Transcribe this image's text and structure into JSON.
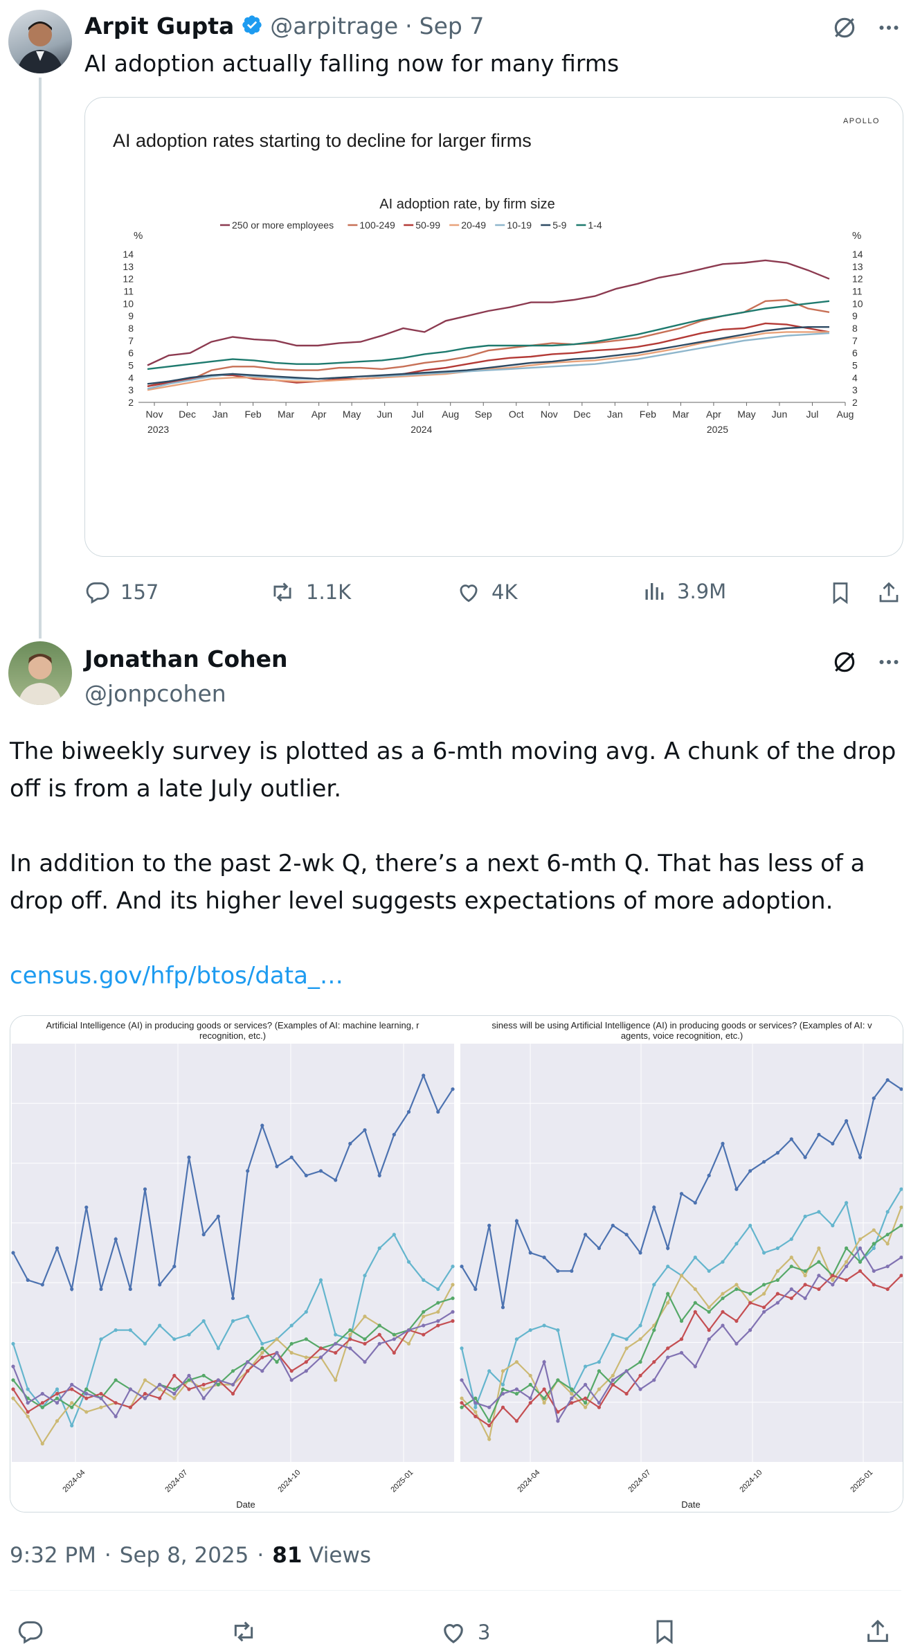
{
  "tweet1": {
    "name": "Arpit Gupta",
    "handle": "@arpitrage",
    "separator": "·",
    "date": "Sep 7",
    "text": "AI adoption actually falling now for many firms",
    "replies": "157",
    "retweets": "1.1K",
    "likes": "4K",
    "views": "3.9M"
  },
  "chart1": {
    "brand": "APOLLO",
    "headline": "AI adoption rates starting to decline for larger firms",
    "subtitle": "AI adoption rate, by firm size",
    "unit": "%",
    "legend": [
      "250 or more employees",
      "100-249",
      "50-99",
      "20-49",
      "10-19",
      "5-9",
      "1-4"
    ]
  },
  "chart_data": [
    {
      "type": "line",
      "title": "AI adoption rates starting to decline for larger firms",
      "subtitle": "AI adoption rate, by firm size",
      "ylabel": "%",
      "ylim": [
        2,
        14
      ],
      "yticks": [
        2,
        3,
        4,
        5,
        6,
        7,
        8,
        9,
        10,
        11,
        12,
        13,
        14
      ],
      "x_labels": [
        "Nov",
        "Dec",
        "Jan",
        "Feb",
        "Mar",
        "Apr",
        "May",
        "Jun",
        "Jul",
        "Aug",
        "Sep",
        "Oct",
        "Nov",
        "Dec",
        "Jan",
        "Feb",
        "Mar",
        "Apr",
        "May",
        "Jun",
        "Jul",
        "Aug"
      ],
      "year_labels": [
        "2023",
        "2024",
        "2025"
      ],
      "grid": false,
      "legend_position": "top",
      "colors": [
        "#8c3a50",
        "#c77056",
        "#b33a36",
        "#e8a27a",
        "#8eb6cc",
        "#2d4a63",
        "#1e7a6e"
      ],
      "series": [
        {
          "name": "250 or more employees",
          "values": [
            5.0,
            5.8,
            6.0,
            6.9,
            7.3,
            7.1,
            7.0,
            6.6,
            6.6,
            6.8,
            6.9,
            7.4,
            8.0,
            7.7,
            8.6,
            9.0,
            9.4,
            9.7,
            10.1,
            10.1,
            10.3,
            10.6,
            11.2,
            11.6,
            12.1,
            12.4,
            12.8,
            13.2,
            13.3,
            13.5,
            13.3,
            12.7,
            12.0
          ]
        },
        {
          "name": "100-249",
          "values": [
            3.3,
            3.7,
            3.8,
            4.6,
            4.9,
            4.9,
            4.7,
            4.6,
            4.6,
            4.8,
            4.8,
            4.7,
            4.9,
            5.2,
            5.4,
            5.7,
            6.2,
            6.4,
            6.6,
            6.8,
            6.7,
            6.8,
            7.0,
            7.2,
            7.6,
            8.0,
            8.6,
            9.0,
            9.3,
            10.2,
            10.3,
            9.6,
            9.3
          ]
        },
        {
          "name": "50-99",
          "values": [
            3.3,
            3.6,
            3.9,
            4.2,
            4.2,
            3.9,
            3.8,
            3.6,
            3.7,
            3.9,
            3.9,
            4.0,
            4.3,
            4.6,
            4.8,
            5.1,
            5.4,
            5.6,
            5.7,
            5.9,
            6.0,
            6.2,
            6.3,
            6.5,
            6.8,
            7.2,
            7.6,
            7.9,
            8.0,
            8.4,
            8.3,
            8.0,
            7.7
          ]
        },
        {
          "name": "20-49",
          "values": [
            3.0,
            3.3,
            3.6,
            3.9,
            4.0,
            4.0,
            3.8,
            3.7,
            3.7,
            3.8,
            3.9,
            4.0,
            4.1,
            4.2,
            4.3,
            4.5,
            4.7,
            4.8,
            5.0,
            5.2,
            5.3,
            5.4,
            5.6,
            5.8,
            6.1,
            6.4,
            6.8,
            7.1,
            7.3,
            7.6,
            7.7,
            7.7,
            7.7
          ]
        },
        {
          "name": "10-19",
          "values": [
            3.1,
            3.5,
            3.8,
            4.1,
            4.3,
            4.1,
            4.0,
            3.9,
            3.9,
            4.0,
            4.1,
            4.1,
            4.2,
            4.3,
            4.4,
            4.5,
            4.6,
            4.7,
            4.8,
            4.9,
            5.0,
            5.1,
            5.3,
            5.5,
            5.8,
            6.1,
            6.4,
            6.7,
            7.0,
            7.2,
            7.4,
            7.5,
            7.6
          ]
        },
        {
          "name": "5-9",
          "values": [
            3.5,
            3.7,
            4.0,
            4.2,
            4.3,
            4.2,
            4.1,
            4.0,
            3.9,
            4.0,
            4.1,
            4.2,
            4.3,
            4.4,
            4.5,
            4.6,
            4.8,
            5.0,
            5.2,
            5.3,
            5.5,
            5.6,
            5.8,
            6.0,
            6.3,
            6.6,
            6.9,
            7.2,
            7.5,
            7.8,
            8.0,
            8.1,
            8.1
          ]
        },
        {
          "name": "1-4",
          "values": [
            4.7,
            4.9,
            5.1,
            5.3,
            5.5,
            5.4,
            5.2,
            5.1,
            5.1,
            5.2,
            5.3,
            5.4,
            5.6,
            5.9,
            6.1,
            6.4,
            6.6,
            6.6,
            6.6,
            6.6,
            6.7,
            6.9,
            7.2,
            7.5,
            7.9,
            8.3,
            8.7,
            9.0,
            9.3,
            9.6,
            9.8,
            10.0,
            10.2
          ]
        }
      ]
    },
    {
      "type": "line",
      "title": "Artificial Intelligence (AI) in producing goods or services? (Examples of AI: machine learning, r... recognition, etc.)",
      "xlabel": "Date",
      "x_ticks": [
        "2024-04",
        "2024-07",
        "2024-10",
        "2025-01"
      ],
      "grid": true,
      "legend_position": "none",
      "colors": [
        "#4c72b0",
        "#64b5cd",
        "#ccb974",
        "#55a868",
        "#c44e52",
        "#8172b2"
      ],
      "series": [
        {
          "values": [
            5.2,
            4.6,
            4.5,
            5.3,
            4.4,
            6.2,
            4.4,
            5.5,
            4.4,
            6.6,
            4.5,
            4.9,
            7.3,
            5.6,
            6.0,
            4.2,
            7.0,
            8.0,
            7.1,
            7.3,
            6.9,
            7.0,
            6.8,
            7.6,
            7.9,
            6.9,
            7.8,
            8.3,
            9.1,
            8.3,
            8.8
          ]
        },
        {
          "values": [
            3.2,
            2.2,
            1.8,
            2.2,
            1.4,
            2.2,
            3.3,
            3.5,
            3.5,
            3.2,
            3.6,
            3.3,
            3.4,
            3.7,
            3.1,
            3.7,
            3.8,
            3.2,
            3.3,
            3.6,
            3.9,
            4.6,
            3.4,
            3.3,
            4.7,
            5.3,
            5.6,
            5.0,
            4.6,
            4.4,
            4.9
          ]
        },
        {
          "values": [
            2.0,
            1.6,
            1.0,
            1.5,
            1.9,
            1.7,
            1.8,
            1.9,
            1.8,
            2.4,
            2.2,
            2.0,
            2.4,
            2.2,
            2.3,
            2.3,
            2.6,
            3.0,
            3.3,
            3.0,
            2.9,
            2.9,
            2.4,
            3.4,
            3.8,
            3.6,
            3.4,
            3.2,
            3.8,
            3.9,
            4.5
          ]
        },
        {
          "values": [
            2.4,
            2.0,
            1.8,
            2.0,
            1.8,
            2.2,
            2.0,
            2.4,
            2.2,
            2.0,
            2.3,
            2.2,
            2.4,
            2.5,
            2.3,
            2.6,
            2.8,
            3.1,
            2.8,
            3.2,
            3.3,
            3.1,
            3.2,
            3.5,
            3.3,
            3.6,
            3.4,
            3.5,
            3.9,
            4.1,
            4.2
          ]
        },
        {
          "values": [
            2.2,
            1.7,
            1.9,
            2.1,
            2.2,
            2.0,
            2.1,
            1.9,
            1.8,
            2.1,
            2.0,
            2.5,
            2.2,
            2.3,
            2.4,
            2.1,
            2.6,
            2.9,
            3.0,
            2.6,
            2.8,
            3.1,
            3.0,
            3.3,
            3.2,
            3.4,
            3.0,
            3.5,
            3.4,
            3.6,
            3.7
          ]
        },
        {
          "values": [
            2.7,
            1.9,
            2.1,
            1.9,
            2.3,
            2.1,
            2.0,
            1.6,
            2.2,
            2.0,
            2.3,
            2.1,
            2.5,
            2.0,
            2.4,
            2.3,
            2.8,
            2.6,
            3.0,
            2.4,
            2.6,
            2.9,
            3.2,
            3.1,
            2.8,
            3.2,
            3.3,
            3.5,
            3.6,
            3.7,
            3.9
          ]
        }
      ]
    },
    {
      "type": "line",
      "title": "...siness will be using Artificial Intelligence (AI) in producing goods or services? (Examples of AI: ... agents, voice recognition, etc.)",
      "xlabel": "Date",
      "x_ticks": [
        "2024-04",
        "2024-07",
        "2024-10",
        "2025-01"
      ],
      "grid": true,
      "legend_position": "none",
      "colors": [
        "#4c72b0",
        "#64b5cd",
        "#ccb974",
        "#55a868",
        "#c44e52",
        "#8172b2"
      ],
      "series": [
        {
          "values": [
            4.9,
            4.4,
            5.8,
            4.0,
            5.9,
            5.2,
            5.1,
            4.8,
            4.8,
            5.6,
            5.3,
            5.8,
            5.6,
            5.2,
            6.2,
            5.3,
            6.5,
            6.3,
            6.9,
            7.6,
            6.6,
            7.0,
            7.2,
            7.4,
            7.7,
            7.3,
            7.8,
            7.6,
            8.1,
            7.3,
            8.6,
            9.0,
            8.8
          ]
        },
        {
          "values": [
            3.1,
            1.8,
            2.6,
            2.3,
            3.3,
            3.5,
            3.6,
            3.5,
            2.1,
            2.7,
            2.8,
            3.4,
            3.3,
            3.6,
            4.5,
            4.9,
            4.7,
            5.1,
            4.8,
            5.0,
            5.4,
            5.8,
            5.2,
            5.3,
            5.5,
            6.0,
            6.1,
            5.8,
            6.3,
            5.0,
            5.3,
            6.1,
            6.6
          ]
        },
        {
          "values": [
            2.0,
            1.7,
            1.1,
            2.6,
            2.8,
            2.5,
            1.9,
            2.4,
            2.1,
            1.8,
            2.2,
            2.5,
            3.1,
            3.3,
            3.6,
            4.1,
            4.7,
            4.4,
            4.0,
            4.3,
            4.5,
            4.1,
            4.3,
            4.8,
            5.1,
            4.7,
            5.3,
            4.6,
            5.0,
            5.5,
            5.7,
            5.4,
            6.2
          ]
        },
        {
          "values": [
            1.8,
            2.0,
            1.5,
            2.2,
            2.1,
            2.3,
            2.0,
            2.4,
            2.2,
            1.9,
            2.6,
            2.3,
            2.6,
            2.8,
            3.5,
            4.3,
            3.7,
            4.1,
            3.9,
            4.2,
            4.4,
            4.3,
            4.5,
            4.6,
            4.9,
            4.8,
            5.0,
            4.7,
            5.3,
            5.0,
            5.4,
            5.6,
            5.8
          ]
        },
        {
          "values": [
            1.9,
            1.6,
            1.4,
            1.8,
            1.5,
            1.9,
            2.2,
            1.7,
            1.9,
            2.0,
            1.8,
            2.3,
            2.1,
            2.5,
            2.8,
            3.1,
            3.3,
            3.9,
            3.5,
            3.9,
            3.7,
            4.1,
            4.0,
            4.3,
            4.2,
            4.5,
            4.4,
            4.7,
            4.6,
            4.8,
            4.5,
            4.4,
            4.7
          ]
        },
        {
          "values": [
            2.4,
            1.9,
            1.8,
            2.1,
            2.2,
            2.0,
            2.8,
            1.5,
            2.0,
            2.3,
            1.9,
            2.4,
            2.6,
            2.2,
            2.4,
            2.9,
            3.0,
            2.7,
            3.3,
            3.6,
            3.2,
            3.5,
            3.9,
            4.1,
            4.4,
            4.2,
            4.7,
            4.5,
            4.9,
            5.3,
            4.8,
            4.9,
            5.1
          ]
        }
      ]
    }
  ],
  "chart2": {
    "left_title_line1": "Artificial Intelligence (AI) in producing goods or services? (Examples of AI: machine learning, r",
    "left_title_line2": "recognition, etc.)",
    "right_title_line1": "siness will be using Artificial Intelligence (AI) in producing goods or services? (Examples of AI: v",
    "right_title_line2": "agents, voice recognition, etc.)",
    "xlabel": "Date",
    "x_ticks": [
      "2024-04",
      "2024-07",
      "2024-10",
      "2025-01"
    ]
  },
  "tweet2": {
    "name": "Jonathan Cohen",
    "handle": "@jonpcohen",
    "para1": "The biweekly survey is plotted as a 6-mth moving avg. A chunk of the drop off is from a late July outlier.",
    "para2": "In addition to the past 2-wk Q, there’s a next 6-mth Q. That has less of a drop off. And its higher level suggests expectations of more adoption.",
    "link": "census.gov/hfp/btos/data_…",
    "time": "9:32 PM",
    "sep": "·",
    "date": "Sep 8, 2025",
    "sep2": "·",
    "views_count": "81",
    "views_label": "Views",
    "likes": "3"
  },
  "icons": [
    "verified-badge-icon",
    "grok-icon",
    "more-icon",
    "reply-icon",
    "retweet-icon",
    "like-icon",
    "views-icon",
    "bookmark-icon",
    "share-icon"
  ]
}
